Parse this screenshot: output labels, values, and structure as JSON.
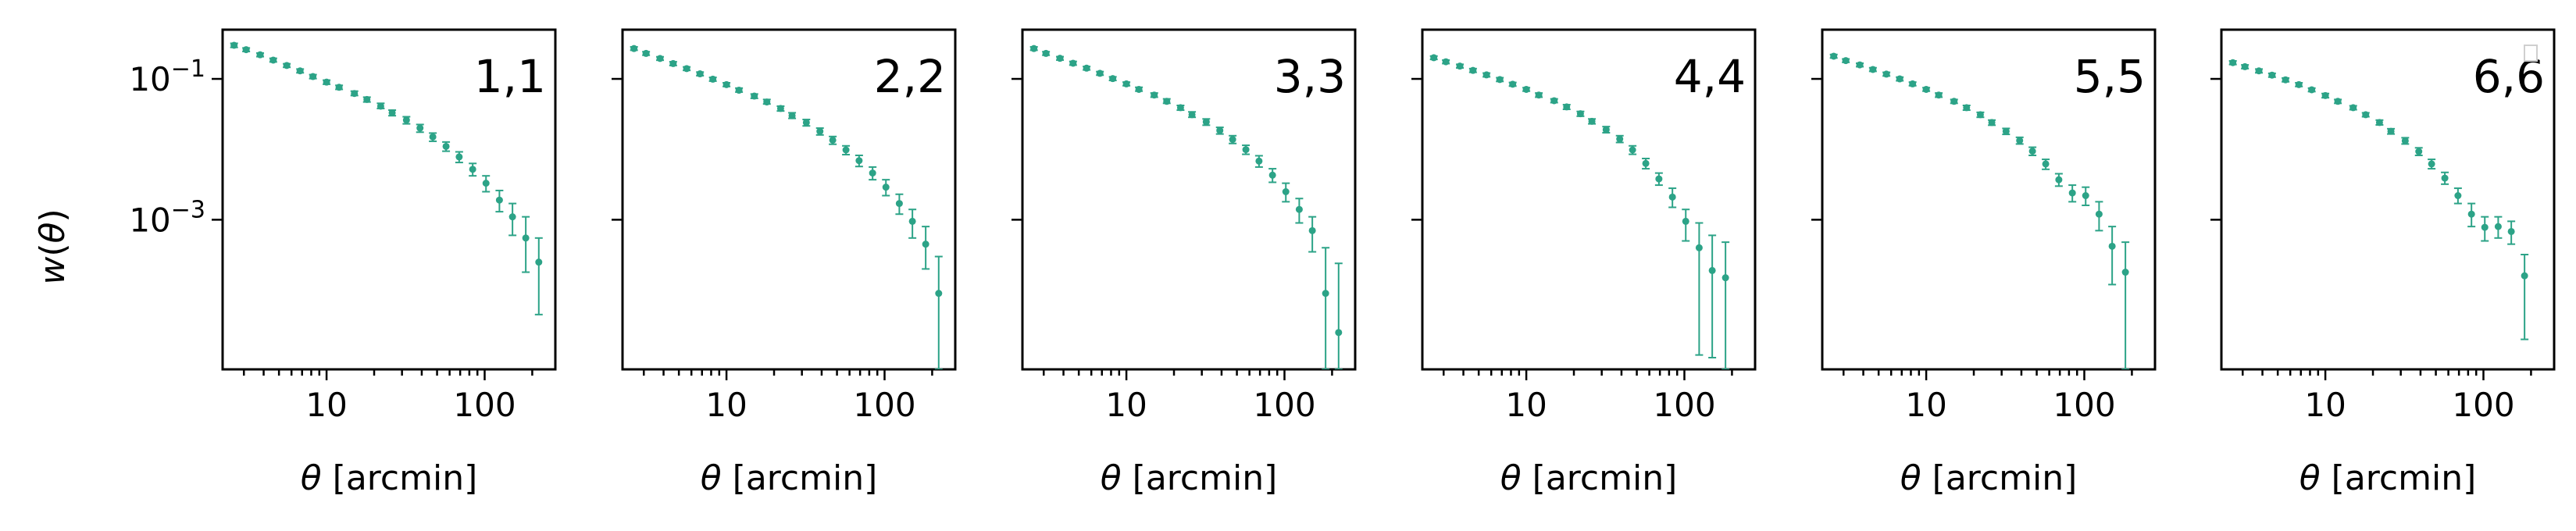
{
  "chart_data": {
    "type": "scatter",
    "layout": "1x6 panels, shared y-axis",
    "xlabel": "$\\theta$ [arcmin]",
    "xlabel_parts": {
      "symbol": "θ",
      "text": " [arcmin]"
    },
    "ylabel": "$w(\\theta)$",
    "ylabel_parts": {
      "w": "w",
      "open": "(",
      "theta": "θ",
      "close": ")"
    },
    "xscale": "log",
    "yscale": "log",
    "xlim": [
      2.2,
      280
    ],
    "ylim": [
      7.5e-06,
      0.5
    ],
    "xticks": [
      {
        "value": 10,
        "label": "10"
      },
      {
        "value": 100,
        "label": "100"
      }
    ],
    "yticks": [
      {
        "value": 0.1,
        "base": "10",
        "exp": "−1"
      },
      {
        "value": 0.001,
        "base": "10",
        "exp": "−3"
      }
    ],
    "color": "#2ca387",
    "marker": "point with vertical error bar",
    "panels": [
      {
        "label": "1,1",
        "points": [
          {
            "x": 2.6,
            "y": 0.3,
            "lo": 0.28,
            "hi": 0.32
          },
          {
            "x": 3.1,
            "y": 0.26,
            "lo": 0.245,
            "hi": 0.275
          },
          {
            "x": 3.8,
            "y": 0.22,
            "lo": 0.207,
            "hi": 0.233
          },
          {
            "x": 4.6,
            "y": 0.185,
            "lo": 0.174,
            "hi": 0.196
          },
          {
            "x": 5.6,
            "y": 0.155,
            "lo": 0.146,
            "hi": 0.164
          },
          {
            "x": 6.8,
            "y": 0.13,
            "lo": 0.122,
            "hi": 0.138
          },
          {
            "x": 8.2,
            "y": 0.108,
            "lo": 0.101,
            "hi": 0.115
          },
          {
            "x": 10,
            "y": 0.09,
            "lo": 0.084,
            "hi": 0.096
          },
          {
            "x": 12,
            "y": 0.076,
            "lo": 0.071,
            "hi": 0.081
          },
          {
            "x": 15,
            "y": 0.062,
            "lo": 0.058,
            "hi": 0.067
          },
          {
            "x": 18,
            "y": 0.051,
            "lo": 0.047,
            "hi": 0.055
          },
          {
            "x": 22,
            "y": 0.041,
            "lo": 0.038,
            "hi": 0.045
          },
          {
            "x": 26,
            "y": 0.033,
            "lo": 0.03,
            "hi": 0.036
          },
          {
            "x": 32,
            "y": 0.026,
            "lo": 0.023,
            "hi": 0.029
          },
          {
            "x": 39,
            "y": 0.02,
            "lo": 0.0175,
            "hi": 0.0225
          },
          {
            "x": 47,
            "y": 0.015,
            "lo": 0.013,
            "hi": 0.017
          },
          {
            "x": 57,
            "y": 0.011,
            "lo": 0.0094,
            "hi": 0.0127
          },
          {
            "x": 69,
            "y": 0.0078,
            "lo": 0.0065,
            "hi": 0.0092
          },
          {
            "x": 84,
            "y": 0.0052,
            "lo": 0.0042,
            "hi": 0.0063
          },
          {
            "x": 102,
            "y": 0.0033,
            "lo": 0.0025,
            "hi": 0.0042
          },
          {
            "x": 124,
            "y": 0.0019,
            "lo": 0.0013,
            "hi": 0.0026
          },
          {
            "x": 150,
            "y": 0.0011,
            "lo": 0.0006,
            "hi": 0.0017
          },
          {
            "x": 182,
            "y": 0.00055,
            "lo": 0.00018,
            "hi": 0.0011
          },
          {
            "x": 220,
            "y": 0.00025,
            "lo": 4.5e-05,
            "hi": 0.00055
          }
        ]
      },
      {
        "label": "2,2",
        "points": [
          {
            "x": 2.6,
            "y": 0.27,
            "lo": 0.255,
            "hi": 0.285
          },
          {
            "x": 3.1,
            "y": 0.23,
            "lo": 0.217,
            "hi": 0.243
          },
          {
            "x": 3.8,
            "y": 0.195,
            "lo": 0.184,
            "hi": 0.206
          },
          {
            "x": 4.6,
            "y": 0.165,
            "lo": 0.155,
            "hi": 0.175
          },
          {
            "x": 5.6,
            "y": 0.14,
            "lo": 0.132,
            "hi": 0.148
          },
          {
            "x": 6.8,
            "y": 0.118,
            "lo": 0.111,
            "hi": 0.125
          },
          {
            "x": 8.2,
            "y": 0.099,
            "lo": 0.093,
            "hi": 0.105
          },
          {
            "x": 10,
            "y": 0.083,
            "lo": 0.078,
            "hi": 0.088
          },
          {
            "x": 12,
            "y": 0.069,
            "lo": 0.065,
            "hi": 0.074
          },
          {
            "x": 15,
            "y": 0.057,
            "lo": 0.053,
            "hi": 0.061
          },
          {
            "x": 18,
            "y": 0.047,
            "lo": 0.044,
            "hi": 0.051
          },
          {
            "x": 22,
            "y": 0.038,
            "lo": 0.035,
            "hi": 0.041
          },
          {
            "x": 26,
            "y": 0.03,
            "lo": 0.0275,
            "hi": 0.033
          },
          {
            "x": 32,
            "y": 0.024,
            "lo": 0.0215,
            "hi": 0.0265
          },
          {
            "x": 39,
            "y": 0.018,
            "lo": 0.016,
            "hi": 0.02
          },
          {
            "x": 47,
            "y": 0.0135,
            "lo": 0.0118,
            "hi": 0.0152
          },
          {
            "x": 57,
            "y": 0.0098,
            "lo": 0.0084,
            "hi": 0.0112
          },
          {
            "x": 69,
            "y": 0.0069,
            "lo": 0.0057,
            "hi": 0.0082
          },
          {
            "x": 84,
            "y": 0.0046,
            "lo": 0.0037,
            "hi": 0.0056
          },
          {
            "x": 102,
            "y": 0.0029,
            "lo": 0.0022,
            "hi": 0.0037
          },
          {
            "x": 124,
            "y": 0.0017,
            "lo": 0.0012,
            "hi": 0.0023
          },
          {
            "x": 150,
            "y": 0.00095,
            "lo": 0.00055,
            "hi": 0.0014
          },
          {
            "x": 182,
            "y": 0.00045,
            "lo": 0.0002,
            "hi": 0.0008
          },
          {
            "x": 220,
            "y": 9e-05,
            "lo": 7.5e-06,
            "hi": 0.0003
          }
        ]
      },
      {
        "label": "3,3",
        "points": [
          {
            "x": 2.6,
            "y": 0.27,
            "lo": 0.255,
            "hi": 0.285
          },
          {
            "x": 3.1,
            "y": 0.23,
            "lo": 0.217,
            "hi": 0.243
          },
          {
            "x": 3.8,
            "y": 0.196,
            "lo": 0.185,
            "hi": 0.207
          },
          {
            "x": 4.6,
            "y": 0.167,
            "lo": 0.157,
            "hi": 0.177
          },
          {
            "x": 5.6,
            "y": 0.142,
            "lo": 0.134,
            "hi": 0.15
          },
          {
            "x": 6.8,
            "y": 0.12,
            "lo": 0.113,
            "hi": 0.127
          },
          {
            "x": 8.2,
            "y": 0.101,
            "lo": 0.095,
            "hi": 0.107
          },
          {
            "x": 10,
            "y": 0.085,
            "lo": 0.08,
            "hi": 0.09
          },
          {
            "x": 12,
            "y": 0.071,
            "lo": 0.067,
            "hi": 0.076
          },
          {
            "x": 15,
            "y": 0.059,
            "lo": 0.055,
            "hi": 0.063
          },
          {
            "x": 18,
            "y": 0.048,
            "lo": 0.045,
            "hi": 0.052
          },
          {
            "x": 22,
            "y": 0.039,
            "lo": 0.036,
            "hi": 0.042
          },
          {
            "x": 26,
            "y": 0.031,
            "lo": 0.0285,
            "hi": 0.034
          },
          {
            "x": 32,
            "y": 0.0245,
            "lo": 0.022,
            "hi": 0.027
          },
          {
            "x": 39,
            "y": 0.0185,
            "lo": 0.0165,
            "hi": 0.0205
          },
          {
            "x": 47,
            "y": 0.0138,
            "lo": 0.0121,
            "hi": 0.0156
          },
          {
            "x": 57,
            "y": 0.0099,
            "lo": 0.0085,
            "hi": 0.0114
          },
          {
            "x": 69,
            "y": 0.0068,
            "lo": 0.0056,
            "hi": 0.0081
          },
          {
            "x": 84,
            "y": 0.0043,
            "lo": 0.0034,
            "hi": 0.0053
          },
          {
            "x": 102,
            "y": 0.0025,
            "lo": 0.0018,
            "hi": 0.0033
          },
          {
            "x": 124,
            "y": 0.0014,
            "lo": 0.0009,
            "hi": 0.002
          },
          {
            "x": 150,
            "y": 0.0007,
            "lo": 0.00035,
            "hi": 0.0011
          },
          {
            "x": 182,
            "y": 9e-05,
            "lo": 7.5e-06,
            "hi": 0.0004
          },
          {
            "x": 220,
            "y": 2.5e-05,
            "lo": 7.5e-06,
            "hi": 0.00024
          }
        ]
      },
      {
        "label": "4,4",
        "points": [
          {
            "x": 2.6,
            "y": 0.2,
            "lo": 0.189,
            "hi": 0.211
          },
          {
            "x": 3.1,
            "y": 0.175,
            "lo": 0.165,
            "hi": 0.185
          },
          {
            "x": 3.8,
            "y": 0.152,
            "lo": 0.143,
            "hi": 0.161
          },
          {
            "x": 4.6,
            "y": 0.132,
            "lo": 0.124,
            "hi": 0.14
          },
          {
            "x": 5.6,
            "y": 0.114,
            "lo": 0.107,
            "hi": 0.121
          },
          {
            "x": 6.8,
            "y": 0.098,
            "lo": 0.092,
            "hi": 0.104
          },
          {
            "x": 8.2,
            "y": 0.084,
            "lo": 0.079,
            "hi": 0.089
          },
          {
            "x": 10,
            "y": 0.071,
            "lo": 0.067,
            "hi": 0.075
          },
          {
            "x": 12,
            "y": 0.059,
            "lo": 0.055,
            "hi": 0.063
          },
          {
            "x": 15,
            "y": 0.049,
            "lo": 0.046,
            "hi": 0.052
          },
          {
            "x": 18,
            "y": 0.04,
            "lo": 0.037,
            "hi": 0.043
          },
          {
            "x": 22,
            "y": 0.032,
            "lo": 0.0295,
            "hi": 0.0345
          },
          {
            "x": 26,
            "y": 0.025,
            "lo": 0.023,
            "hi": 0.027
          },
          {
            "x": 32,
            "y": 0.019,
            "lo": 0.0172,
            "hi": 0.021
          },
          {
            "x": 39,
            "y": 0.014,
            "lo": 0.0125,
            "hi": 0.0156
          },
          {
            "x": 47,
            "y": 0.0098,
            "lo": 0.0085,
            "hi": 0.0112
          },
          {
            "x": 57,
            "y": 0.0063,
            "lo": 0.0053,
            "hi": 0.0074
          },
          {
            "x": 69,
            "y": 0.0038,
            "lo": 0.0031,
            "hi": 0.0046
          },
          {
            "x": 84,
            "y": 0.0021,
            "lo": 0.0015,
            "hi": 0.0028
          },
          {
            "x": 102,
            "y": 0.00095,
            "lo": 0.0005,
            "hi": 0.0014
          },
          {
            "x": 124,
            "y": 0.0004,
            "lo": 1.2e-05,
            "hi": 0.0009
          },
          {
            "x": 150,
            "y": 0.00019,
            "lo": 1.1e-05,
            "hi": 0.0006
          },
          {
            "x": 182,
            "y": 0.00015,
            "lo": 7.5e-06,
            "hi": 0.00048
          }
        ]
      },
      {
        "label": "5,5",
        "points": [
          {
            "x": 2.6,
            "y": 0.21,
            "lo": 0.198,
            "hi": 0.222
          },
          {
            "x": 3.1,
            "y": 0.182,
            "lo": 0.172,
            "hi": 0.192
          },
          {
            "x": 3.8,
            "y": 0.158,
            "lo": 0.149,
            "hi": 0.167
          },
          {
            "x": 4.6,
            "y": 0.136,
            "lo": 0.128,
            "hi": 0.144
          },
          {
            "x": 5.6,
            "y": 0.117,
            "lo": 0.11,
            "hi": 0.124
          },
          {
            "x": 6.8,
            "y": 0.1,
            "lo": 0.094,
            "hi": 0.106
          },
          {
            "x": 8.2,
            "y": 0.085,
            "lo": 0.08,
            "hi": 0.09
          },
          {
            "x": 10,
            "y": 0.071,
            "lo": 0.067,
            "hi": 0.075
          },
          {
            "x": 12,
            "y": 0.059,
            "lo": 0.055,
            "hi": 0.063
          },
          {
            "x": 15,
            "y": 0.048,
            "lo": 0.045,
            "hi": 0.051
          },
          {
            "x": 18,
            "y": 0.039,
            "lo": 0.036,
            "hi": 0.042
          },
          {
            "x": 22,
            "y": 0.031,
            "lo": 0.0285,
            "hi": 0.0335
          },
          {
            "x": 26,
            "y": 0.024,
            "lo": 0.022,
            "hi": 0.026
          },
          {
            "x": 32,
            "y": 0.018,
            "lo": 0.0163,
            "hi": 0.0198
          },
          {
            "x": 39,
            "y": 0.0133,
            "lo": 0.0119,
            "hi": 0.0148
          },
          {
            "x": 47,
            "y": 0.0094,
            "lo": 0.0082,
            "hi": 0.0107
          },
          {
            "x": 57,
            "y": 0.0062,
            "lo": 0.0052,
            "hi": 0.0072
          },
          {
            "x": 69,
            "y": 0.0037,
            "lo": 0.003,
            "hi": 0.0045
          },
          {
            "x": 84,
            "y": 0.0024,
            "lo": 0.0018,
            "hi": 0.0031
          },
          {
            "x": 102,
            "y": 0.0022,
            "lo": 0.0016,
            "hi": 0.0029
          },
          {
            "x": 124,
            "y": 0.0012,
            "lo": 0.0007,
            "hi": 0.0018
          },
          {
            "x": 150,
            "y": 0.00042,
            "lo": 0.00012,
            "hi": 0.0008
          },
          {
            "x": 182,
            "y": 0.00018,
            "lo": 7.5e-06,
            "hi": 0.00048
          }
        ]
      },
      {
        "label": "6,6",
        "points": [
          {
            "x": 2.6,
            "y": 0.17,
            "lo": 0.16,
            "hi": 0.18
          },
          {
            "x": 3.1,
            "y": 0.149,
            "lo": 0.14,
            "hi": 0.158
          },
          {
            "x": 3.8,
            "y": 0.13,
            "lo": 0.122,
            "hi": 0.138
          },
          {
            "x": 4.6,
            "y": 0.113,
            "lo": 0.106,
            "hi": 0.12
          },
          {
            "x": 5.6,
            "y": 0.097,
            "lo": 0.091,
            "hi": 0.103
          },
          {
            "x": 6.8,
            "y": 0.083,
            "lo": 0.078,
            "hi": 0.088
          },
          {
            "x": 8.2,
            "y": 0.07,
            "lo": 0.066,
            "hi": 0.074
          },
          {
            "x": 10,
            "y": 0.058,
            "lo": 0.054,
            "hi": 0.062
          },
          {
            "x": 12,
            "y": 0.048,
            "lo": 0.045,
            "hi": 0.051
          },
          {
            "x": 15,
            "y": 0.039,
            "lo": 0.0365,
            "hi": 0.0415
          },
          {
            "x": 18,
            "y": 0.031,
            "lo": 0.029,
            "hi": 0.033
          },
          {
            "x": 22,
            "y": 0.024,
            "lo": 0.0222,
            "hi": 0.026
          },
          {
            "x": 26,
            "y": 0.018,
            "lo": 0.0165,
            "hi": 0.0196
          },
          {
            "x": 32,
            "y": 0.0132,
            "lo": 0.0119,
            "hi": 0.0146
          },
          {
            "x": 39,
            "y": 0.0093,
            "lo": 0.0082,
            "hi": 0.0105
          },
          {
            "x": 47,
            "y": 0.0062,
            "lo": 0.0053,
            "hi": 0.0072
          },
          {
            "x": 57,
            "y": 0.0039,
            "lo": 0.0032,
            "hi": 0.0047
          },
          {
            "x": 69,
            "y": 0.0022,
            "lo": 0.0017,
            "hi": 0.0028
          },
          {
            "x": 84,
            "y": 0.0012,
            "lo": 0.0008,
            "hi": 0.0017
          },
          {
            "x": 102,
            "y": 0.00078,
            "lo": 0.0005,
            "hi": 0.0011
          },
          {
            "x": 124,
            "y": 0.0008,
            "lo": 0.00055,
            "hi": 0.0011
          },
          {
            "x": 150,
            "y": 0.00068,
            "lo": 0.00045,
            "hi": 0.00095
          },
          {
            "x": 182,
            "y": 0.00016,
            "lo": 2e-05,
            "hi": 0.00032
          }
        ]
      }
    ]
  }
}
